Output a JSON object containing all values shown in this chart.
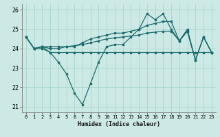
{
  "title": "",
  "xlabel": "Humidex (Indice chaleur)",
  "xlim": [
    -0.5,
    23.5
  ],
  "ylim": [
    20.7,
    26.3
  ],
  "yticks": [
    21,
    22,
    23,
    24,
    25,
    26
  ],
  "xticks": [
    0,
    1,
    2,
    3,
    4,
    5,
    6,
    7,
    8,
    9,
    10,
    11,
    12,
    13,
    14,
    15,
    16,
    17,
    18,
    19,
    20,
    21,
    22,
    23
  ],
  "bg_color": "#cce9e5",
  "grid_color": "#a8d5cf",
  "line_color": "#1a6b6b",
  "line1": [
    24.6,
    24.0,
    24.1,
    23.8,
    23.3,
    22.7,
    21.7,
    21.1,
    22.2,
    23.3,
    24.1,
    24.2,
    24.2,
    24.6,
    25.0,
    25.8,
    25.5,
    25.8,
    25.0,
    24.4,
    24.9,
    23.4,
    24.6,
    23.8
  ],
  "line2": [
    24.6,
    24.0,
    24.0,
    23.8,
    23.8,
    23.8,
    23.8,
    23.8,
    23.8,
    23.8,
    23.8,
    23.8,
    23.8,
    23.8,
    23.8,
    23.8,
    23.8,
    23.8,
    23.8,
    23.8,
    23.8,
    23.8,
    23.8,
    23.8
  ],
  "line3": [
    24.6,
    24.0,
    24.1,
    24.0,
    24.0,
    24.1,
    24.1,
    24.3,
    24.5,
    24.6,
    24.7,
    24.8,
    24.8,
    24.9,
    25.0,
    25.2,
    25.3,
    25.4,
    25.4,
    24.4,
    25.0,
    23.4,
    24.6,
    23.8
  ],
  "line4": [
    24.6,
    24.0,
    24.1,
    24.1,
    24.1,
    24.1,
    24.15,
    24.2,
    24.3,
    24.4,
    24.5,
    24.55,
    24.6,
    24.65,
    24.7,
    24.8,
    24.85,
    24.9,
    24.9,
    24.4,
    24.9,
    23.4,
    24.6,
    23.8
  ],
  "marker_size": 2.0,
  "line_width": 0.9
}
